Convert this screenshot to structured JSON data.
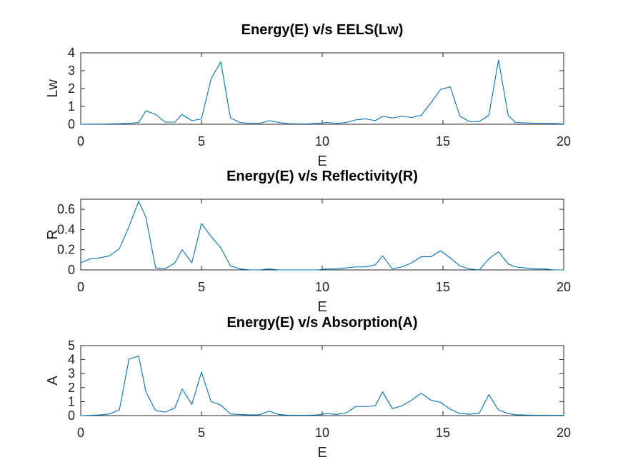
{
  "colors": {
    "series": "#0072BD",
    "axes": "#262626"
  },
  "chart_data": [
    {
      "type": "line",
      "title": "Energy(E) v/s EELS(Lw)",
      "xlabel": "E",
      "ylabel": "Lw",
      "xlim": [
        0,
        20
      ],
      "ylim": [
        0,
        4
      ],
      "xticks": [
        0,
        5,
        10,
        15,
        20
      ],
      "yticks": [
        0,
        1,
        2,
        3,
        4
      ],
      "grid": false,
      "x": [
        0,
        0.4,
        0.8,
        1.2,
        1.6,
        2.0,
        2.4,
        2.7,
        3.1,
        3.5,
        3.9,
        4.2,
        4.6,
        5.0,
        5.4,
        5.8,
        6.2,
        6.6,
        7.0,
        7.4,
        7.8,
        8.2,
        8.6,
        9.0,
        9.4,
        9.8,
        10.2,
        10.6,
        11.0,
        11.4,
        11.8,
        12.2,
        12.5,
        12.9,
        13.3,
        13.7,
        14.1,
        14.5,
        14.9,
        15.3,
        15.7,
        16.1,
        16.5,
        16.9,
        17.3,
        17.7,
        18.0,
        18.4,
        18.8,
        19.2,
        19.6,
        20.0
      ],
      "y": [
        0,
        0.01,
        0.01,
        0.02,
        0.03,
        0.05,
        0.1,
        0.75,
        0.55,
        0.12,
        0.12,
        0.55,
        0.2,
        0.3,
        2.55,
        3.5,
        0.35,
        0.1,
        0.05,
        0.05,
        0.2,
        0.1,
        0.03,
        0.02,
        0.02,
        0.05,
        0.1,
        0.05,
        0.1,
        0.25,
        0.3,
        0.2,
        0.45,
        0.35,
        0.45,
        0.38,
        0.5,
        1.2,
        1.95,
        2.1,
        0.45,
        0.15,
        0.15,
        0.5,
        3.6,
        0.5,
        0.1,
        0.08,
        0.06,
        0.05,
        0.04,
        0.02
      ]
    },
    {
      "type": "line",
      "title": "Energy(E) v/s Reflectivity(R)",
      "xlabel": "E",
      "ylabel": "R",
      "xlim": [
        0,
        20
      ],
      "ylim": [
        0,
        0.7
      ],
      "xticks": [
        0,
        5,
        10,
        15,
        20
      ],
      "yticks": [
        0,
        0.2,
        0.4,
        0.6
      ],
      "grid": false,
      "x": [
        0,
        0.4,
        0.8,
        1.2,
        1.6,
        2.0,
        2.4,
        2.7,
        3.1,
        3.5,
        3.9,
        4.2,
        4.6,
        5.0,
        5.4,
        5.8,
        6.2,
        6.6,
        7.0,
        7.4,
        7.8,
        8.2,
        8.6,
        9.0,
        9.4,
        9.8,
        10.2,
        10.6,
        11.0,
        11.4,
        11.8,
        12.2,
        12.5,
        12.9,
        13.3,
        13.7,
        14.1,
        14.5,
        14.9,
        15.3,
        15.7,
        16.1,
        16.5,
        16.9,
        17.3,
        17.7,
        18.0,
        18.4,
        18.8,
        19.2,
        19.6,
        20.0
      ],
      "y": [
        0.07,
        0.11,
        0.12,
        0.14,
        0.21,
        0.43,
        0.68,
        0.52,
        0.02,
        0.01,
        0.07,
        0.2,
        0.07,
        0.46,
        0.33,
        0.22,
        0.04,
        0.01,
        0.0,
        0.0,
        0.01,
        0.0,
        0.0,
        0.0,
        0.0,
        0.0,
        0.01,
        0.01,
        0.02,
        0.03,
        0.03,
        0.05,
        0.14,
        0.01,
        0.03,
        0.07,
        0.13,
        0.13,
        0.19,
        0.12,
        0.04,
        0.01,
        0.0,
        0.11,
        0.18,
        0.06,
        0.03,
        0.02,
        0.01,
        0.01,
        0.0,
        0.0
      ]
    },
    {
      "type": "line",
      "title": "Energy(E) v/s Absorption(A)",
      "xlabel": "E",
      "ylabel": "A",
      "xlim": [
        0,
        20
      ],
      "ylim": [
        0,
        5
      ],
      "xticks": [
        0,
        5,
        10,
        15,
        20
      ],
      "yticks": [
        0,
        1,
        2,
        3,
        4,
        5
      ],
      "grid": false,
      "x": [
        0,
        0.4,
        0.8,
        1.2,
        1.6,
        2.0,
        2.4,
        2.7,
        3.1,
        3.5,
        3.9,
        4.2,
        4.6,
        5.0,
        5.4,
        5.8,
        6.2,
        6.6,
        7.0,
        7.4,
        7.8,
        8.2,
        8.6,
        9.0,
        9.4,
        9.8,
        10.2,
        10.6,
        11.0,
        11.4,
        11.8,
        12.2,
        12.5,
        12.9,
        13.3,
        13.7,
        14.1,
        14.5,
        14.9,
        15.3,
        15.7,
        16.1,
        16.5,
        16.9,
        17.3,
        17.7,
        18.0,
        18.4,
        18.8,
        19.2,
        19.6,
        20.0
      ],
      "y": [
        0,
        0.02,
        0.05,
        0.12,
        0.4,
        4.05,
        4.25,
        1.7,
        0.35,
        0.25,
        0.55,
        1.9,
        0.8,
        3.1,
        1.0,
        0.75,
        0.12,
        0.08,
        0.05,
        0.06,
        0.32,
        0.08,
        0.03,
        0.03,
        0.03,
        0.05,
        0.15,
        0.08,
        0.2,
        0.65,
        0.65,
        0.7,
        1.7,
        0.5,
        0.7,
        1.1,
        1.6,
        1.1,
        0.95,
        0.45,
        0.15,
        0.1,
        0.15,
        1.5,
        0.4,
        0.15,
        0.06,
        0.04,
        0.03,
        0.03,
        0.02,
        0.02
      ]
    }
  ]
}
